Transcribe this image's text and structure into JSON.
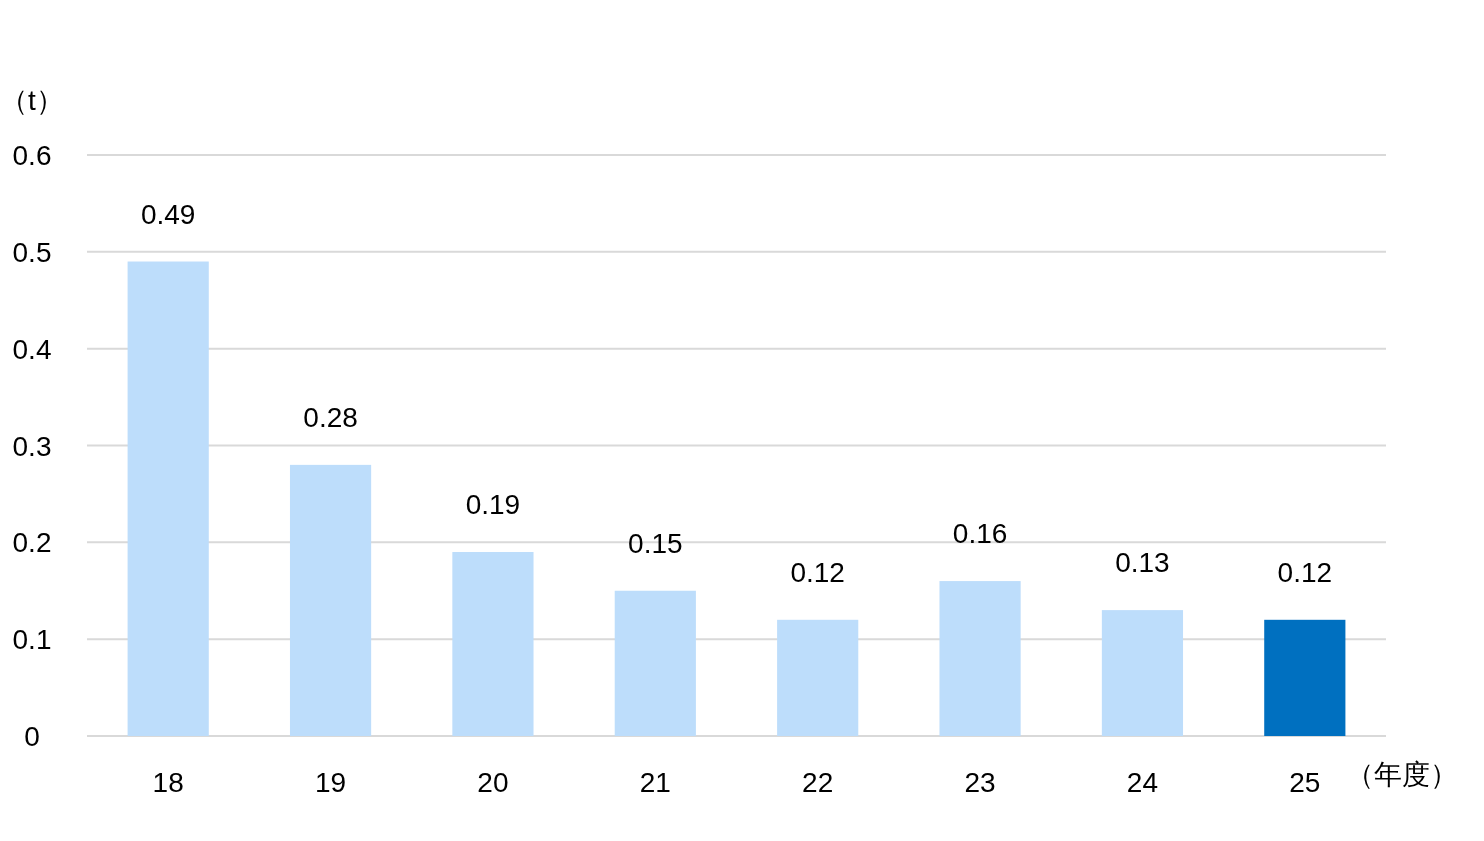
{
  "chart_data": {
    "type": "bar",
    "categories": [
      "18",
      "19",
      "20",
      "21",
      "22",
      "23",
      "24",
      "25"
    ],
    "values": [
      0.49,
      0.28,
      0.19,
      0.15,
      0.12,
      0.16,
      0.13,
      0.12
    ],
    "colors": [
      "#bdddfb",
      "#bdddfb",
      "#bdddfb",
      "#bdddfb",
      "#bdddfb",
      "#bdddfb",
      "#bdddfb",
      "#0070c0"
    ],
    "ylim": [
      0,
      0.6
    ],
    "yticks": [
      0,
      0.1,
      0.2,
      0.3,
      0.4,
      0.5,
      0.6
    ],
    "grid": "y",
    "data_labels": true,
    "xlabel": "（年度）",
    "ylabel": "（t）"
  }
}
